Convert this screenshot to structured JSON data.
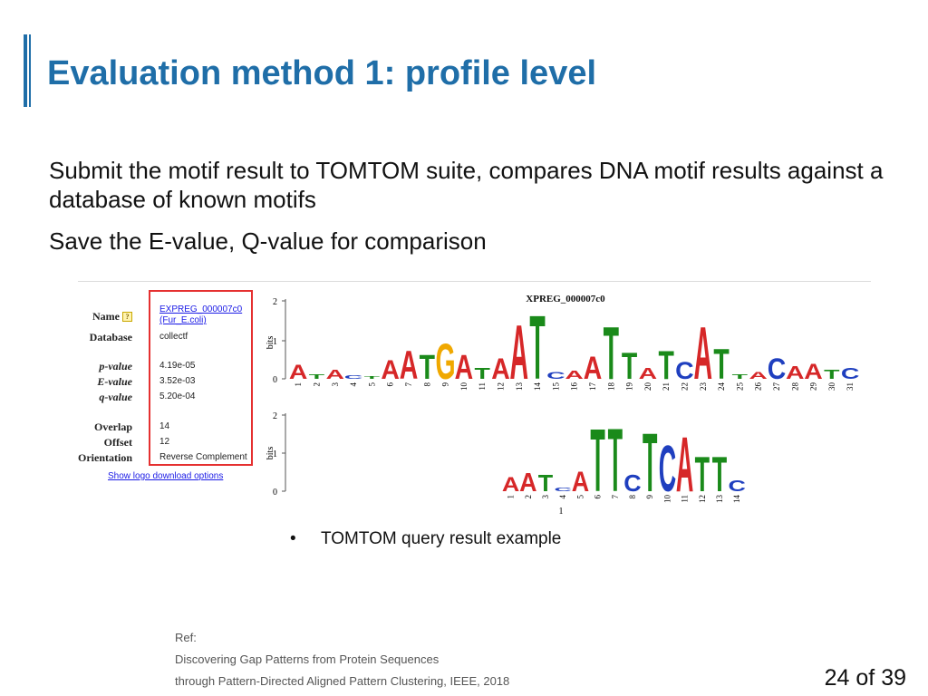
{
  "slide": {
    "title": "Evaluation method 1: profile level",
    "bullet1": "Submit the motif result to TOMTOM suite, compares DNA motif results against a database of known motifs",
    "bullet2": "Save the E-value, Q-value for comparison",
    "page_number": "24 of 39"
  },
  "figure": {
    "labels": {
      "name": "Name",
      "database": "Database",
      "pvalue": "p-value",
      "evalue": "E-value",
      "qvalue": "q-value",
      "overlap": "Overlap",
      "offset": "Offset",
      "orientation": "Orientation"
    },
    "values": {
      "name_line1": "EXPREG_000007c0",
      "name_line2": "(Fur_E.coli)",
      "database": "collectf",
      "pvalue": "4.19e-05",
      "evalue": "3.52e-03",
      "qvalue": "5.20e-04",
      "overlap": "14",
      "offset": "12",
      "orientation": "Reverse Complement"
    },
    "download_link": "Show logo download options",
    "help_icon": "?",
    "logo_title": "XPREG_000007c0",
    "y_axis_label": "bits",
    "top_ticks": [
      "2",
      "1",
      "0"
    ],
    "bottom_ticks": [
      "2",
      "1",
      "0"
    ],
    "top_positions": [
      "1",
      "2",
      "3",
      "4",
      "5",
      "6",
      "7",
      "8",
      "9",
      "10",
      "11",
      "12",
      "13",
      "14",
      "15",
      "16",
      "17",
      "18",
      "19",
      "20",
      "21",
      "22",
      "23",
      "24",
      "25",
      "26",
      "27",
      "28",
      "29",
      "30",
      "31"
    ],
    "bottom_positions": [
      "1",
      "2",
      "3",
      "4",
      "5",
      "6",
      "7",
      "8",
      "9",
      "10",
      "11",
      "12",
      "13",
      "14"
    ],
    "bottom_footer": "1",
    "colors": {
      "A": "#d62728",
      "C": "#1f3fbf",
      "G": "#f0a800",
      "T": "#1a8a1a",
      "frame": "#e53030",
      "title": "#1f6ea8"
    },
    "top_letters": [
      "A",
      "T",
      "A",
      "C",
      "T",
      "A",
      "A",
      "T",
      "G",
      "A",
      "T",
      "A",
      "A",
      "T",
      "C",
      "A",
      "A",
      "T",
      "T",
      "A",
      "T",
      "C",
      "A",
      "T",
      "T",
      "A",
      "C",
      "A",
      "A",
      "T",
      "C"
    ],
    "top_heights": [
      0.38,
      0.12,
      0.25,
      0.1,
      0.08,
      0.5,
      0.75,
      0.65,
      0.95,
      0.65,
      0.3,
      0.55,
      1.45,
      1.7,
      0.18,
      0.22,
      0.6,
      1.4,
      0.7,
      0.3,
      0.75,
      0.45,
      1.4,
      0.8,
      0.12,
      0.18,
      0.55,
      0.35,
      0.4,
      0.25,
      0.3
    ],
    "bottom_letters": [
      "A",
      "A",
      "T",
      "C",
      "A",
      "T",
      "T",
      "C",
      "T",
      "C",
      "A",
      "T",
      "T",
      "C"
    ],
    "bottom_heights": [
      0.38,
      0.5,
      0.45,
      0.1,
      0.55,
      1.7,
      1.72,
      0.45,
      1.6,
      1.25,
      1.5,
      0.95,
      0.95,
      0.3
    ],
    "caption_bullet": "•",
    "caption": "TOMTOM query result example"
  },
  "reference": {
    "label": "Ref:",
    "line1": "Discovering Gap Patterns from Protein Sequences",
    "line2": "through Pattern-Directed Aligned Pattern Clustering, IEEE, 2018"
  }
}
